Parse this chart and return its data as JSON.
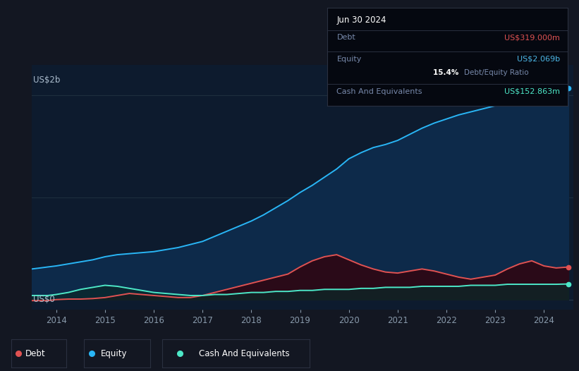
{
  "background_color": "#131722",
  "plot_bg_color": "#0d1b2e",
  "title_box": {
    "date": "Jun 30 2024",
    "debt_label": "Debt",
    "debt_value": "US$319.000m",
    "equity_label": "Equity",
    "equity_value": "US$2.069b",
    "ratio_text": "15.4% Debt/Equity Ratio",
    "cash_label": "Cash And Equivalents",
    "cash_value": "US$152.863m",
    "debt_color": "#e05252",
    "equity_color": "#4db8e8",
    "cash_color": "#4de8c8"
  },
  "ylabel": "US$2b",
  "ylabel0": "US$0",
  "x_ticks": [
    "2014",
    "2015",
    "2016",
    "2017",
    "2018",
    "2019",
    "2020",
    "2021",
    "2022",
    "2023",
    "2024"
  ],
  "equity_line_color": "#29b6f6",
  "debt_line_color": "#e05252",
  "cash_line_color": "#4de8c8",
  "equity_fill_color": "#0d2a4a",
  "debt_fill_color": "#2a0a18",
  "cash_fill_color": "#0a2828",
  "years": [
    2013.5,
    2013.67,
    2013.83,
    2014.0,
    2014.25,
    2014.5,
    2014.75,
    2015.0,
    2015.25,
    2015.5,
    2015.75,
    2016.0,
    2016.25,
    2016.5,
    2016.75,
    2017.0,
    2017.25,
    2017.5,
    2017.75,
    2018.0,
    2018.25,
    2018.5,
    2018.75,
    2019.0,
    2019.25,
    2019.5,
    2019.75,
    2020.0,
    2020.25,
    2020.5,
    2020.75,
    2021.0,
    2021.25,
    2021.5,
    2021.75,
    2022.0,
    2022.25,
    2022.5,
    2022.75,
    2023.0,
    2023.25,
    2023.5,
    2023.75,
    2024.0,
    2024.25,
    2024.5
  ],
  "equity": [
    0.3,
    0.31,
    0.32,
    0.33,
    0.35,
    0.37,
    0.39,
    0.42,
    0.44,
    0.45,
    0.46,
    0.47,
    0.49,
    0.51,
    0.54,
    0.57,
    0.62,
    0.67,
    0.72,
    0.77,
    0.83,
    0.9,
    0.97,
    1.05,
    1.12,
    1.2,
    1.28,
    1.38,
    1.44,
    1.49,
    1.52,
    1.56,
    1.62,
    1.68,
    1.73,
    1.77,
    1.81,
    1.84,
    1.87,
    1.9,
    1.94,
    1.98,
    2.03,
    2.06,
    2.09,
    2.069
  ],
  "debt": [
    -0.01,
    -0.01,
    -0.01,
    0.0,
    0.005,
    0.005,
    0.01,
    0.02,
    0.04,
    0.06,
    0.05,
    0.04,
    0.03,
    0.02,
    0.02,
    0.04,
    0.07,
    0.1,
    0.13,
    0.16,
    0.19,
    0.22,
    0.25,
    0.32,
    0.38,
    0.42,
    0.44,
    0.39,
    0.34,
    0.3,
    0.27,
    0.26,
    0.28,
    0.3,
    0.28,
    0.25,
    0.22,
    0.2,
    0.22,
    0.24,
    0.3,
    0.35,
    0.38,
    0.33,
    0.31,
    0.319
  ],
  "cash": [
    0.04,
    0.04,
    0.04,
    0.05,
    0.07,
    0.1,
    0.12,
    0.14,
    0.13,
    0.11,
    0.09,
    0.07,
    0.06,
    0.05,
    0.04,
    0.04,
    0.05,
    0.05,
    0.06,
    0.07,
    0.07,
    0.08,
    0.08,
    0.09,
    0.09,
    0.1,
    0.1,
    0.1,
    0.11,
    0.11,
    0.12,
    0.12,
    0.12,
    0.13,
    0.13,
    0.13,
    0.13,
    0.14,
    0.14,
    0.14,
    0.15,
    0.15,
    0.15,
    0.15,
    0.15,
    0.153
  ]
}
